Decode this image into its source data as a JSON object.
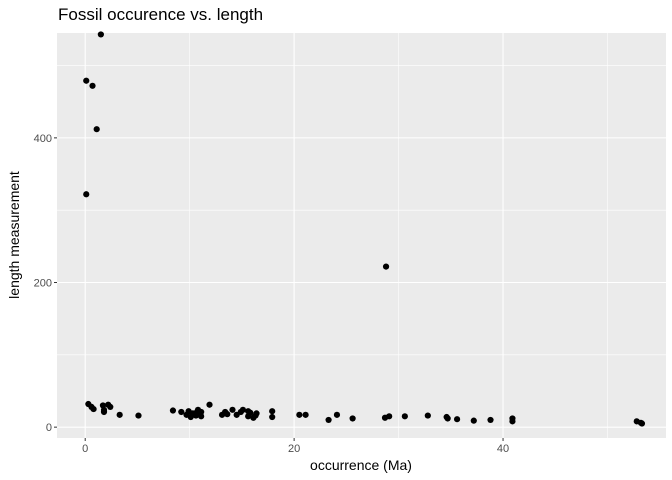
{
  "chart_data": {
    "type": "scatter",
    "title": "Fossil occurence vs. length",
    "xlabel": "occurrence (Ma)",
    "ylabel": "length measurement",
    "xlim": [
      -2.7,
      55.6
    ],
    "ylim": [
      -15,
      545
    ],
    "x_ticks": [
      0,
      20,
      40
    ],
    "x_tick_labels": [
      "0",
      "20",
      "40"
    ],
    "y_ticks": [
      0,
      200,
      400
    ],
    "y_tick_labels": [
      "0",
      "200",
      "400"
    ],
    "grid": true,
    "legend": "none",
    "colors": {
      "panel": "#ebebeb",
      "grid": "#ffffff",
      "point": "#000000",
      "tick": "#333333"
    },
    "points": [
      {
        "x": 1.5,
        "y": 543
      },
      {
        "x": 0.1,
        "y": 479
      },
      {
        "x": 0.7,
        "y": 472
      },
      {
        "x": 1.1,
        "y": 412
      },
      {
        "x": 0.1,
        "y": 322
      },
      {
        "x": 28.8,
        "y": 222
      },
      {
        "x": 0.3,
        "y": 32
      },
      {
        "x": 0.6,
        "y": 28
      },
      {
        "x": 0.8,
        "y": 25
      },
      {
        "x": 1.7,
        "y": 30
      },
      {
        "x": 1.8,
        "y": 24
      },
      {
        "x": 1.8,
        "y": 21
      },
      {
        "x": 2.2,
        "y": 31
      },
      {
        "x": 2.4,
        "y": 28
      },
      {
        "x": 3.3,
        "y": 17
      },
      {
        "x": 5.1,
        "y": 16
      },
      {
        "x": 8.4,
        "y": 23
      },
      {
        "x": 9.2,
        "y": 21
      },
      {
        "x": 9.7,
        "y": 17
      },
      {
        "x": 9.9,
        "y": 22
      },
      {
        "x": 10.1,
        "y": 14
      },
      {
        "x": 10.3,
        "y": 19
      },
      {
        "x": 10.6,
        "y": 16
      },
      {
        "x": 10.7,
        "y": 21
      },
      {
        "x": 10.8,
        "y": 24
      },
      {
        "x": 10.9,
        "y": 18
      },
      {
        "x": 11.1,
        "y": 15
      },
      {
        "x": 11.1,
        "y": 21
      },
      {
        "x": 11.9,
        "y": 31
      },
      {
        "x": 13.1,
        "y": 17
      },
      {
        "x": 13.4,
        "y": 21
      },
      {
        "x": 13.6,
        "y": 18
      },
      {
        "x": 14.1,
        "y": 24
      },
      {
        "x": 14.5,
        "y": 17
      },
      {
        "x": 14.9,
        "y": 21
      },
      {
        "x": 15.1,
        "y": 24
      },
      {
        "x": 15.6,
        "y": 15
      },
      {
        "x": 15.6,
        "y": 22
      },
      {
        "x": 15.8,
        "y": 20
      },
      {
        "x": 16.1,
        "y": 13
      },
      {
        "x": 16.3,
        "y": 16
      },
      {
        "x": 16.4,
        "y": 19
      },
      {
        "x": 17.9,
        "y": 14
      },
      {
        "x": 17.9,
        "y": 22
      },
      {
        "x": 20.5,
        "y": 17
      },
      {
        "x": 21.1,
        "y": 17
      },
      {
        "x": 23.3,
        "y": 10
      },
      {
        "x": 24.1,
        "y": 17
      },
      {
        "x": 25.6,
        "y": 12
      },
      {
        "x": 28.7,
        "y": 13
      },
      {
        "x": 29.1,
        "y": 15
      },
      {
        "x": 30.6,
        "y": 15
      },
      {
        "x": 32.8,
        "y": 16
      },
      {
        "x": 34.6,
        "y": 14
      },
      {
        "x": 34.7,
        "y": 12
      },
      {
        "x": 35.6,
        "y": 11
      },
      {
        "x": 37.2,
        "y": 9
      },
      {
        "x": 38.8,
        "y": 10
      },
      {
        "x": 40.9,
        "y": 12
      },
      {
        "x": 40.9,
        "y": 8
      },
      {
        "x": 52.8,
        "y": 8
      },
      {
        "x": 53.2,
        "y": 6
      },
      {
        "x": 53.3,
        "y": 5
      }
    ]
  }
}
